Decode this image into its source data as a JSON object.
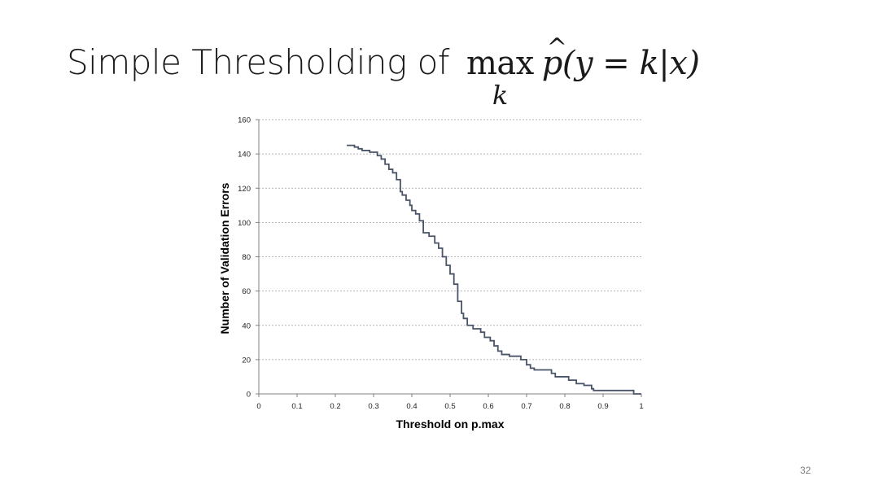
{
  "slide": {
    "title_text": "Simple Thresholding of ",
    "title_math": {
      "operator": "max",
      "subscript": "k",
      "function": "p",
      "hat": "^",
      "argument": "(y = k|x)"
    },
    "page_number": "32"
  },
  "chart_data": {
    "type": "line",
    "title": "",
    "xlabel": "Threshold on p.max",
    "ylabel": "Number of Validation Errors",
    "xlim": [
      0,
      1
    ],
    "ylim": [
      0,
      160
    ],
    "x_ticks": [
      "0",
      "0.1",
      "0.2",
      "0.3",
      "0.4",
      "0.5",
      "0.6",
      "0.7",
      "0.8",
      "0.9",
      "1"
    ],
    "y_ticks": [
      "0",
      "20",
      "40",
      "60",
      "80",
      "100",
      "120",
      "140",
      "160"
    ],
    "grid": "horizontal dashed",
    "line_color": "#4a5468",
    "series": [
      {
        "step": true,
        "x": [
          0.23,
          0.25,
          0.26,
          0.27,
          0.29,
          0.31,
          0.32,
          0.33,
          0.34,
          0.35,
          0.36,
          0.37,
          0.375,
          0.385,
          0.395,
          0.4,
          0.41,
          0.42,
          0.43,
          0.445,
          0.46,
          0.47,
          0.48,
          0.49,
          0.5,
          0.51,
          0.52,
          0.53,
          0.535,
          0.545,
          0.56,
          0.58,
          0.59,
          0.605,
          0.615,
          0.625,
          0.635,
          0.655,
          0.685,
          0.7,
          0.71,
          0.72,
          0.765,
          0.775,
          0.81,
          0.83,
          0.85,
          0.87,
          0.875,
          0.98,
          1.0
        ],
        "y": [
          145,
          144,
          143,
          142,
          141,
          139,
          137,
          134,
          131,
          129,
          125,
          118,
          116,
          113,
          110,
          107,
          105,
          101,
          94,
          92,
          88,
          85,
          80,
          75,
          70,
          64,
          54,
          47,
          44,
          40,
          38,
          36,
          33,
          31,
          28,
          25,
          23,
          22,
          20,
          17,
          15,
          14,
          12,
          10,
          8,
          6,
          5,
          3,
          2,
          0,
          0
        ]
      }
    ]
  }
}
